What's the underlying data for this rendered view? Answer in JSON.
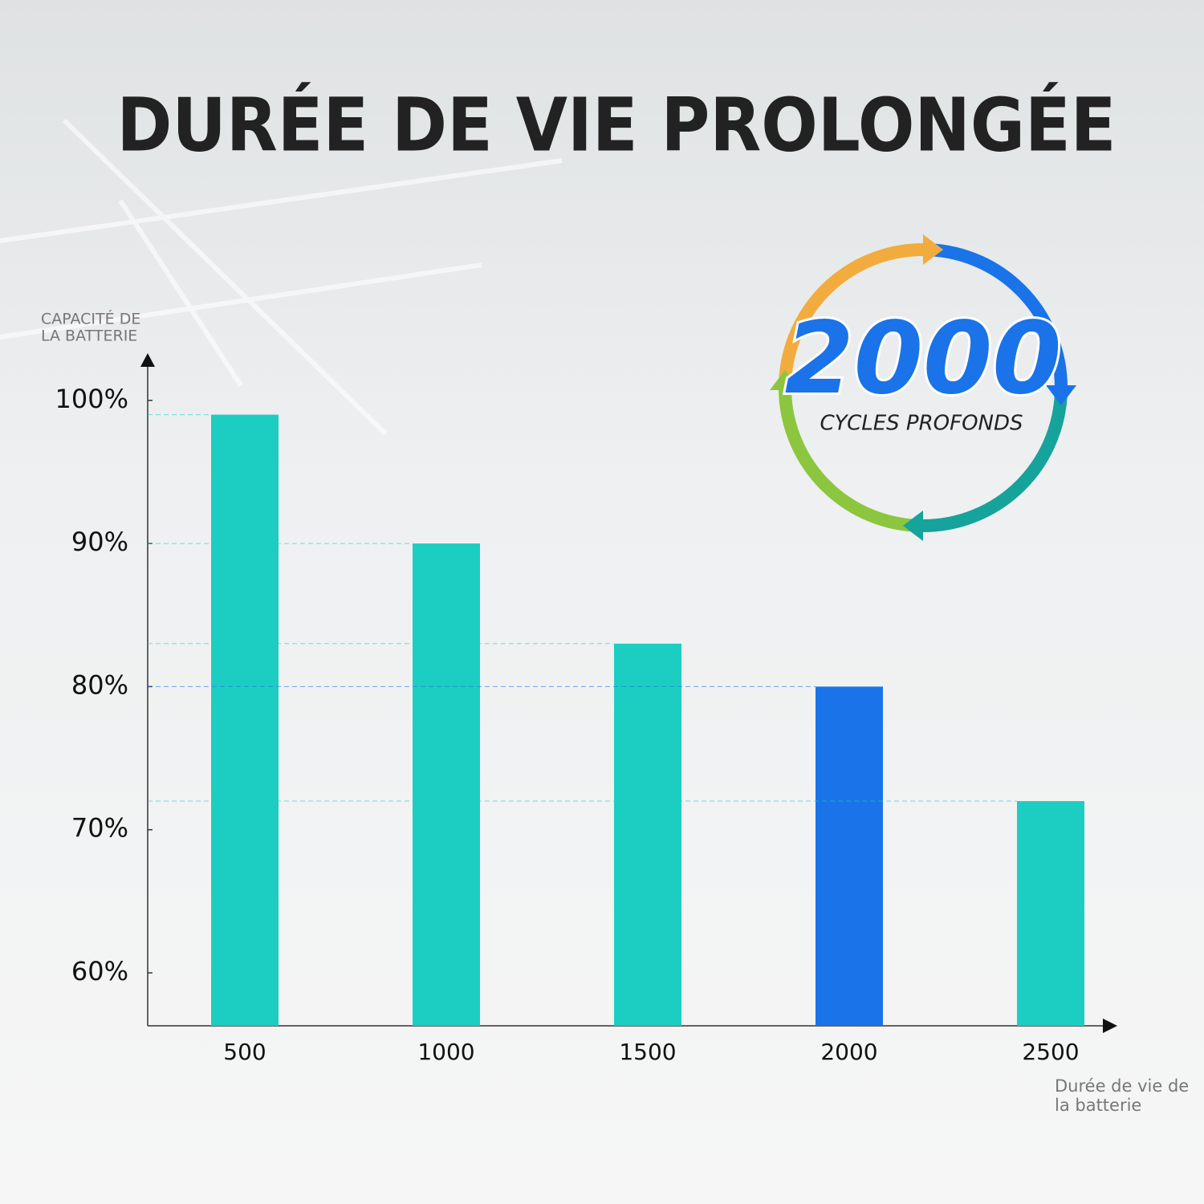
{
  "chart_data": {
    "type": "bar",
    "title": "DURÉE DE VIE PROLONGÉE",
    "ylabel": [
      "CAPACITÉ DE",
      "LA BATTERIE"
    ],
    "xlabel": [
      "Durée de vie de",
      "la batterie"
    ],
    "categories": [
      "500",
      "1000",
      "1500",
      "2000",
      "2500"
    ],
    "values": [
      99,
      90,
      83,
      80,
      72
    ],
    "colors": [
      "#1ccec2",
      "#1ccec2",
      "#1ccec2",
      "#1a73e8",
      "#1ccec2"
    ],
    "ylim": [
      56.3,
      102.4
    ],
    "yticks": [
      {
        "value": 60,
        "label": "60%"
      },
      {
        "value": 70,
        "label": "70%"
      },
      {
        "value": 80,
        "label": "80%"
      },
      {
        "value": 90,
        "label": "90%"
      },
      {
        "value": 100,
        "label": "100%"
      }
    ],
    "badge": {
      "number": "2000",
      "text": "CYCLES PROFONDS"
    }
  }
}
